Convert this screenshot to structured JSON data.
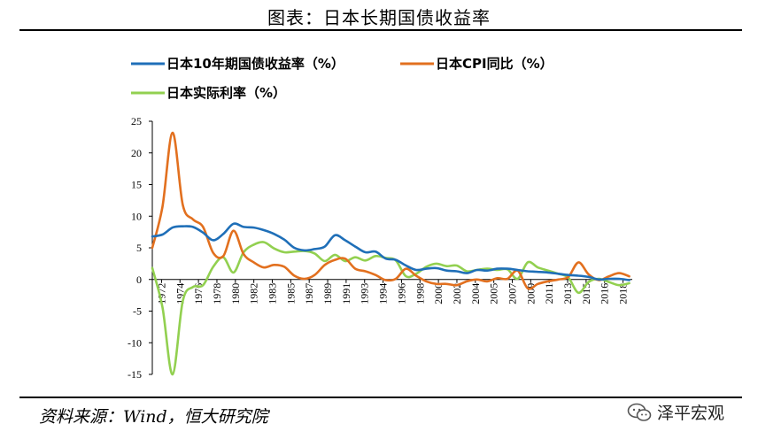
{
  "header": {
    "title": "图表：日本长期国债收益率"
  },
  "footer": {
    "source": "资料来源：Wind，恒大研究院",
    "watermark": "泽平宏观"
  },
  "colors": {
    "yield": "#1f6fb8",
    "cpi": "#e2701f",
    "real": "#92d050"
  },
  "chart_data": {
    "type": "line",
    "ylim": [
      -15,
      25
    ],
    "yticks": [
      -15,
      -10,
      -5,
      0,
      5,
      10,
      15,
      20,
      25
    ],
    "xlim": [
      1972,
      2019.3
    ],
    "xtick_labels": [
      "1972",
      "1974",
      "1976",
      "1978",
      "1980",
      "1982",
      "1983",
      "1985",
      "1987",
      "1989",
      "1991",
      "1993",
      "1994",
      "1996",
      "1998",
      "2000",
      "2002",
      "2004",
      "2005",
      "2007",
      "2009",
      "2011",
      "2013",
      "2015",
      "2016",
      "2018"
    ],
    "legend": "top",
    "series": [
      {
        "name": "日本10年期国债收益率（%）",
        "color_key": "yield",
        "x": [
          1972,
          1973,
          1974,
          1975,
          1976,
          1977,
          1978,
          1979,
          1980,
          1981,
          1982,
          1983,
          1984,
          1985,
          1986,
          1987,
          1988,
          1989,
          1990,
          1991,
          1992,
          1993,
          1994,
          1995,
          1996,
          1997,
          1998,
          1999,
          2000,
          2001,
          2002,
          2003,
          2004,
          2005,
          2006,
          2007,
          2008,
          2009,
          2010,
          2011,
          2012,
          2013,
          2014,
          2015,
          2016,
          2017,
          2018,
          2019
        ],
        "y": [
          6.8,
          7.1,
          8.2,
          8.4,
          8.3,
          7.4,
          6.2,
          7.2,
          8.8,
          8.3,
          8.2,
          7.8,
          7.2,
          6.3,
          5.0,
          4.6,
          4.8,
          5.2,
          7.0,
          6.2,
          5.2,
          4.3,
          4.4,
          3.3,
          3.1,
          2.2,
          1.5,
          1.7,
          1.8,
          1.4,
          1.3,
          1.0,
          1.5,
          1.4,
          1.7,
          1.7,
          1.5,
          1.3,
          1.2,
          1.1,
          0.9,
          0.7,
          0.6,
          0.4,
          0.0,
          0.1,
          0.1,
          -0.1
        ]
      },
      {
        "name": "日本CPI同比（%）",
        "color_key": "cpi",
        "x": [
          1972,
          1973,
          1974,
          1975,
          1976,
          1977,
          1978,
          1979,
          1980,
          1981,
          1982,
          1983,
          1984,
          1985,
          1986,
          1987,
          1988,
          1989,
          1990,
          1991,
          1992,
          1993,
          1994,
          1995,
          1996,
          1997,
          1998,
          1999,
          2000,
          2001,
          2002,
          2003,
          2004,
          2005,
          2006,
          2007,
          2008,
          2009,
          2010,
          2011,
          2012,
          2013,
          2014,
          2015,
          2016,
          2017,
          2018,
          2019
        ],
        "y": [
          5.0,
          11.5,
          23.2,
          11.8,
          9.5,
          8.3,
          4.2,
          3.7,
          7.7,
          4.0,
          2.7,
          1.9,
          2.3,
          2.0,
          0.6,
          0.1,
          0.7,
          2.3,
          3.1,
          3.3,
          1.7,
          1.3,
          0.7,
          -0.1,
          0.1,
          1.7,
          0.6,
          -0.3,
          -0.7,
          -0.7,
          -0.9,
          -0.3,
          0.0,
          -0.3,
          0.2,
          0.1,
          1.4,
          -1.4,
          -0.7,
          -0.3,
          0.0,
          0.4,
          2.7,
          0.8,
          -0.1,
          0.5,
          1.0,
          0.5
        ]
      },
      {
        "name": "日本实际利率（%）",
        "color_key": "real",
        "x": [
          1972,
          1973,
          1974,
          1975,
          1976,
          1977,
          1978,
          1979,
          1980,
          1981,
          1982,
          1983,
          1984,
          1985,
          1986,
          1987,
          1988,
          1989,
          1990,
          1991,
          1992,
          1993,
          1994,
          1995,
          1996,
          1997,
          1998,
          1999,
          2000,
          2001,
          2002,
          2003,
          2004,
          2005,
          2006,
          2007,
          2008,
          2009,
          2010,
          2011,
          2012,
          2013,
          2014,
          2015,
          2016,
          2017,
          2018,
          2019
        ],
        "y": [
          1.8,
          -4.4,
          -15.0,
          -3.4,
          -1.2,
          -0.9,
          2.0,
          3.5,
          1.1,
          4.3,
          5.5,
          5.9,
          4.9,
          4.3,
          4.4,
          4.5,
          4.1,
          2.9,
          3.9,
          2.9,
          3.5,
          3.0,
          3.7,
          3.4,
          3.0,
          0.5,
          0.9,
          2.0,
          2.5,
          2.1,
          2.2,
          1.3,
          1.5,
          1.7,
          1.5,
          1.6,
          0.1,
          2.7,
          1.9,
          1.4,
          0.9,
          0.3,
          -2.1,
          -0.4,
          0.1,
          -0.4,
          -0.9,
          -0.6
        ]
      }
    ]
  }
}
